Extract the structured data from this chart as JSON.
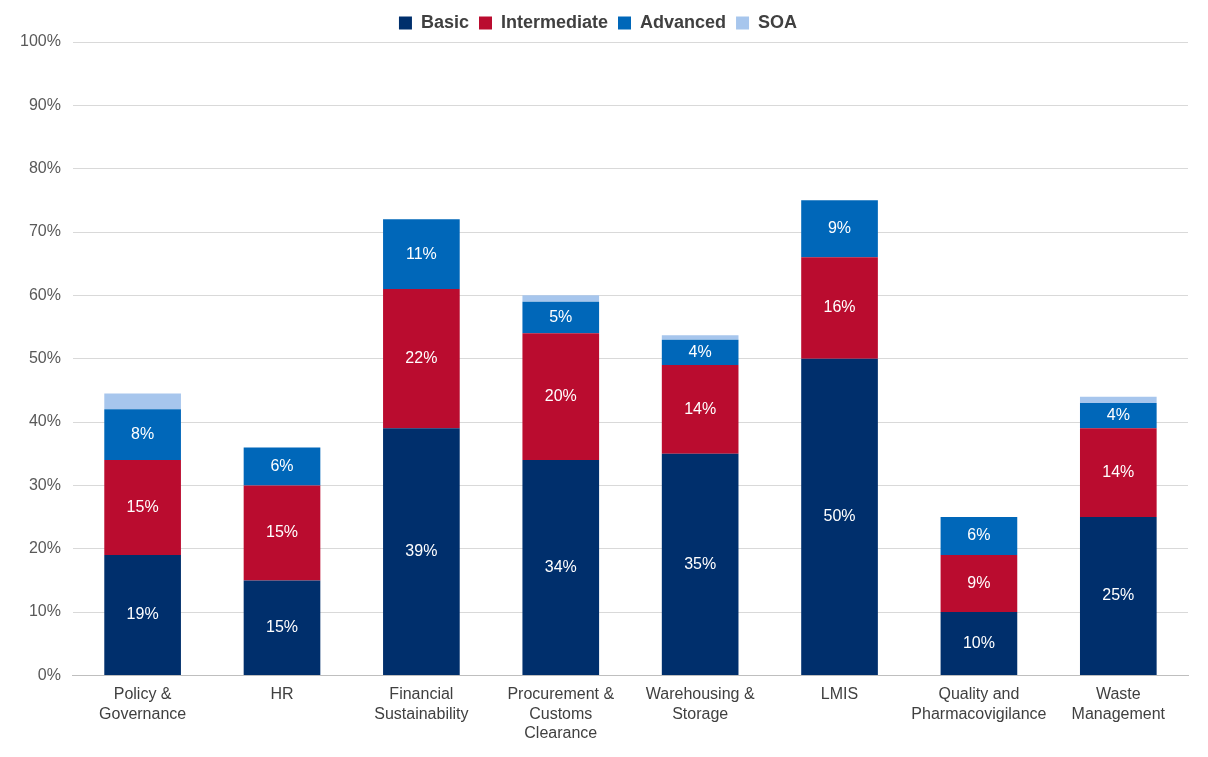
{
  "chart_data": {
    "type": "bar",
    "stacked": true,
    "categories": [
      "Policy & Governance",
      "HR",
      "Financial Sustainability",
      "Procurement & Customs Clearance",
      "Warehousing & Storage",
      "LMIS",
      "Quality and Pharmacovigilance",
      "Waste Management"
    ],
    "series": [
      {
        "name": "Basic",
        "color": "#002f6c",
        "values": [
          19,
          15,
          39,
          34,
          35,
          50,
          10,
          25
        ],
        "value_labels": [
          "19%",
          "15%",
          "39%",
          "34%",
          "35%",
          "50%",
          "10%",
          "25%"
        ]
      },
      {
        "name": "Intermediate",
        "color": "#ba0c2f",
        "values": [
          15,
          15,
          22,
          20,
          14,
          16,
          9,
          14
        ],
        "value_labels": [
          "15%",
          "15%",
          "22%",
          "20%",
          "14%",
          "16%",
          "9%",
          "14%"
        ]
      },
      {
        "name": "Advanced",
        "color": "#0067b9",
        "values": [
          8,
          6,
          11,
          5,
          4,
          9,
          6,
          4
        ],
        "value_labels": [
          "8%",
          "6%",
          "11%",
          "5%",
          "4%",
          "9%",
          "6%",
          "4%"
        ]
      },
      {
        "name": "SOA",
        "color": "#a7c6ed",
        "values": [
          2.5,
          null,
          null,
          1,
          0.7,
          null,
          null,
          1
        ]
      }
    ],
    "ylim": [
      0,
      100
    ],
    "yticks": [
      {
        "value": 0,
        "label": "0%"
      },
      {
        "value": 10,
        "label": "10%"
      },
      {
        "value": 20,
        "label": "20%"
      },
      {
        "value": 30,
        "label": "30%"
      },
      {
        "value": 40,
        "label": "40%"
      },
      {
        "value": 50,
        "label": "50%"
      },
      {
        "value": 60,
        "label": "60%"
      },
      {
        "value": 70,
        "label": "70%"
      },
      {
        "value": 80,
        "label": "80%"
      },
      {
        "value": 90,
        "label": "90%"
      },
      {
        "value": 100,
        "label": "100%"
      }
    ],
    "grid": "y",
    "legend": "top"
  }
}
